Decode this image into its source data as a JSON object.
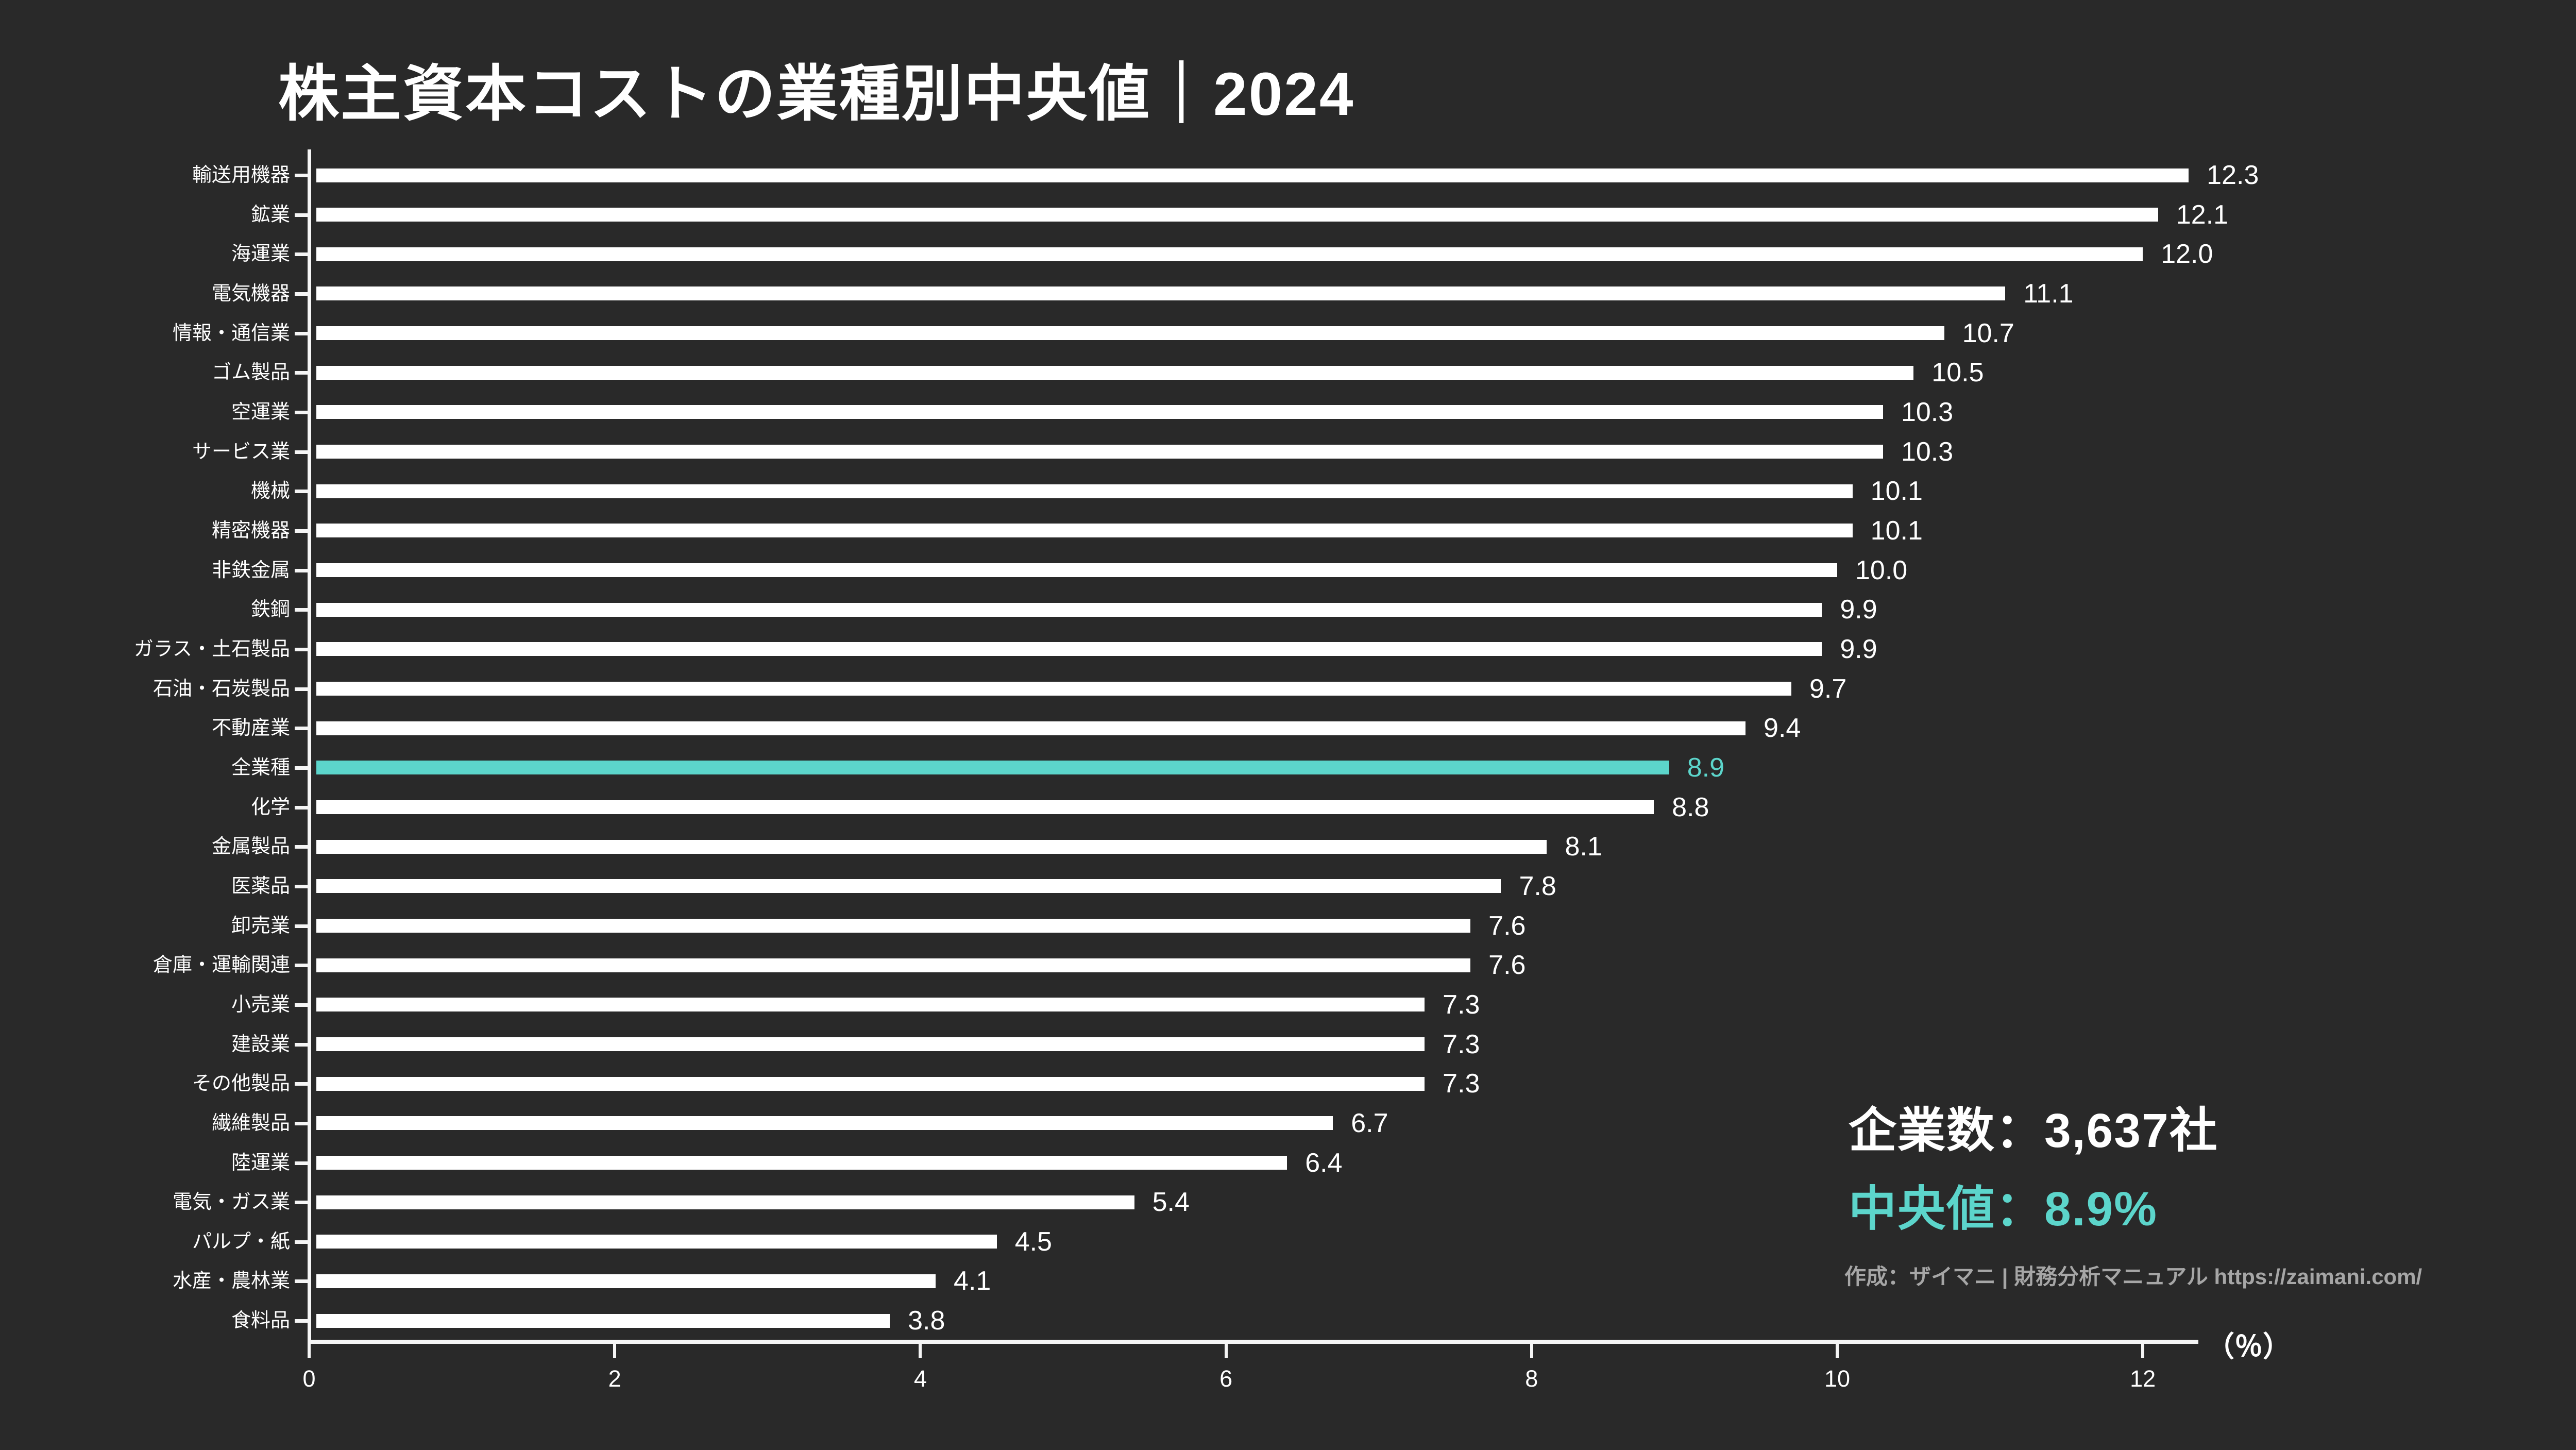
{
  "title": "株主資本コストの業種別中央値｜2024",
  "chart_data": {
    "type": "bar",
    "orientation": "horizontal",
    "title": "株主資本コストの業種別中央値｜2024",
    "categories": [
      "輸送用機器",
      "鉱業",
      "海運業",
      "電気機器",
      "情報・通信業",
      "ゴム製品",
      "空運業",
      "サービス業",
      "機械",
      "精密機器",
      "非鉄金属",
      "鉄鋼",
      "ガラス・土石製品",
      "石油・石炭製品",
      "不動産業",
      "全業種",
      "化学",
      "金属製品",
      "医薬品",
      "卸売業",
      "倉庫・運輸関連",
      "小売業",
      "建設業",
      "その他製品",
      "繊維製品",
      "陸運業",
      "電気・ガス業",
      "パルプ・紙",
      "水産・農林業",
      "食料品"
    ],
    "values": [
      12.3,
      12.1,
      12.0,
      11.1,
      10.7,
      10.5,
      10.3,
      10.3,
      10.1,
      10.1,
      10.0,
      9.9,
      9.9,
      9.7,
      9.4,
      8.9,
      8.8,
      8.1,
      7.8,
      7.6,
      7.6,
      7.3,
      7.3,
      7.3,
      6.7,
      6.4,
      5.4,
      4.5,
      4.1,
      3.8
    ],
    "x_ticks": [
      0,
      2,
      4,
      6,
      8,
      10,
      12
    ],
    "xlim": [
      0,
      12.37
    ],
    "axis_unit_label": "（％）",
    "grid": false,
    "legend": "none",
    "highlight": {
      "category": "全業種",
      "value": 8.9
    }
  },
  "annotations": {
    "company_count": "企業数：3,637社",
    "median": "中央値：8.9%",
    "credit": "作成：ザイマニ | 財務分析マニュアル https://zaimani.com/"
  },
  "colors": {
    "background": "#292929",
    "bar": "#FFFFFF",
    "highlight": "#5CD5CB",
    "text": "#FFFFFF",
    "credit_text": "#A6A6A6",
    "axis": "#F5F5F5"
  }
}
